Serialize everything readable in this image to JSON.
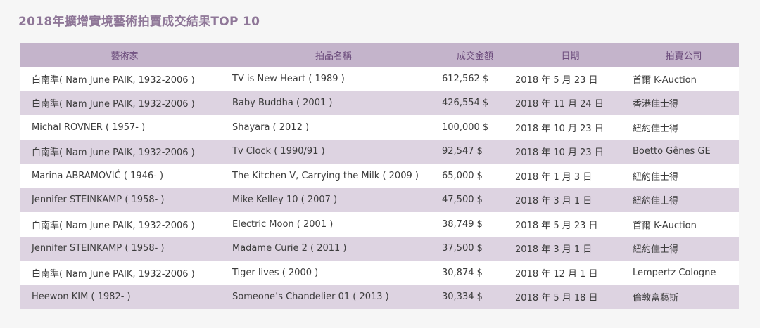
{
  "title": "2018年擴增實境藝術拍賣成交結果TOP 10",
  "colors": {
    "title": "#8f7798",
    "header_bg": "#c4b4cb",
    "header_text": "#6c4c7c",
    "row_alt_bg": "#ddd3e1",
    "row_bg": "#ffffff"
  },
  "table": {
    "headers": [
      "藝術家",
      "拍品名稱",
      "成交金額",
      "日期",
      "拍賣公司"
    ],
    "rows": [
      {
        "artist": "白南準( Nam June PAIK, 1932-2006 )",
        "work": "TV is New Heart ( 1989 )",
        "price": "612,562 $",
        "date": "2018 年 5 月 23 日",
        "house": "首爾 K-Auction"
      },
      {
        "artist": "白南準( Nam June PAIK, 1932-2006 )",
        "work": "Baby Buddha ( 2001 )",
        "price": "426,554 $",
        "date": "2018 年 11 月 24 日",
        "house": "香港佳士得"
      },
      {
        "artist": "Michal ROVNER ( 1957- )",
        "work": "Shayara ( 2012 )",
        "price": "100,000 $",
        "date": "2018 年 10 月 23 日",
        "house": "紐約佳士得"
      },
      {
        "artist": "白南準( Nam June PAIK, 1932-2006 )",
        "work": "Tv Clock ( 1990/91 )",
        "price": "92,547 $",
        "date": "2018 年 10 月 23 日",
        "house": "Boetto Gênes GE"
      },
      {
        "artist": "Marina ABRAMOVIĆ ( 1946- )",
        "work": "The Kitchen V, Carrying the Milk ( 2009 )",
        "price": "65,000 $",
        "date": "2018 年 1 月 3 日",
        "house": "紐約佳士得"
      },
      {
        "artist": "Jennifer STEINKAMP ( 1958- )",
        "work": "Mike Kelley 10 ( 2007 )",
        "price": "47,500 $",
        "date": "2018 年 3 月 1 日",
        "house": "紐約佳士得"
      },
      {
        "artist": "白南準( Nam June PAIK, 1932-2006 )",
        "work": "Electric Moon ( 2001 )",
        "price": "38,749 $",
        "date": "2018 年 5 月 23 日",
        "house": "首爾 K-Auction"
      },
      {
        "artist": "Jennifer STEINKAMP ( 1958- )",
        "work": "Madame Curie 2 ( 2011 )",
        "price": "37,500 $",
        "date": "2018 年 3 月 1 日",
        "house": "紐約佳士得"
      },
      {
        "artist": "白南準( Nam June PAIK, 1932-2006 )",
        "work": "Tiger lives ( 2000 )",
        "price": "30,874 $",
        "date": "2018 年 12 月 1 日",
        "house": "Lempertz Cologne"
      },
      {
        "artist": "Heewon KIM ( 1982- )",
        "work": "Someone’s Chandelier 01 ( 2013 )",
        "price": "30,334 $",
        "date": "2018 年 5 月 18 日",
        "house": "倫敦富藝斯"
      }
    ]
  }
}
